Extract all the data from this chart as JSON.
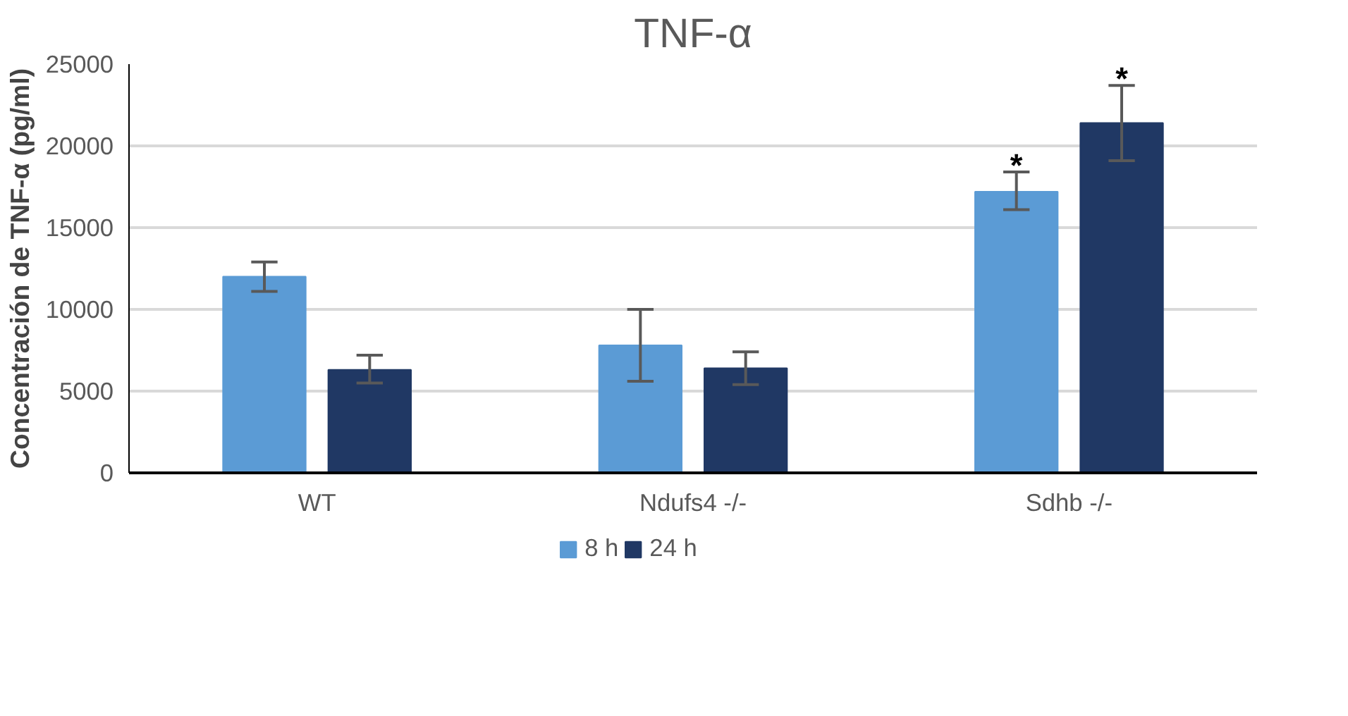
{
  "chart_data": {
    "type": "bar",
    "title": "TNF-α",
    "ylabel": "Concentración de TNF-α (pg/ml)",
    "categories": [
      "WT",
      "Ndufs4 -/-",
      "Sdhb -/-"
    ],
    "series": [
      {
        "name": "8 h",
        "color": "#5b9bd5",
        "values": [
          12000,
          7800,
          17200
        ],
        "errors": [
          [
            11100,
            12900
          ],
          [
            5600,
            10000
          ],
          [
            16100,
            18400
          ]
        ]
      },
      {
        "name": "24 h",
        "color": "#203864",
        "values": [
          6300,
          6400,
          21400
        ],
        "errors": [
          [
            5500,
            7200
          ],
          [
            5400,
            7400
          ],
          [
            19100,
            23700
          ]
        ]
      }
    ],
    "ylim": [
      0,
      25000
    ],
    "yticks": [
      0,
      5000,
      10000,
      15000,
      20000,
      25000
    ],
    "grid": "y",
    "legend": "bottom",
    "annotations": [
      "*",
      "*"
    ]
  }
}
